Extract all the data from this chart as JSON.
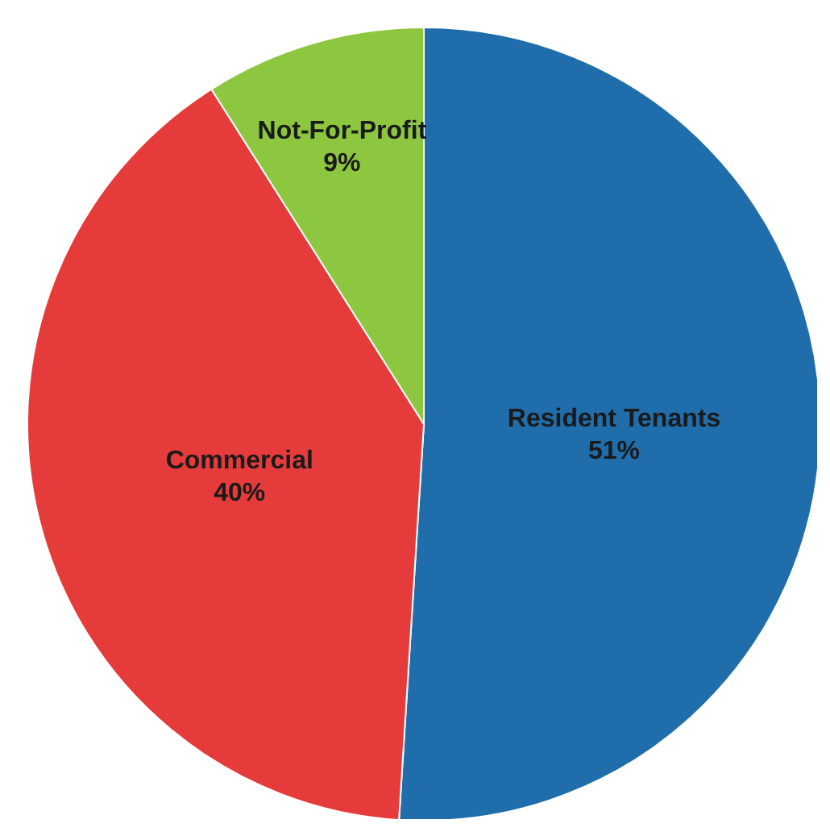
{
  "chart_data": {
    "type": "pie",
    "categories": [
      "Resident Tenants",
      "Commercial",
      "Not-For-Profit"
    ],
    "values": [
      51,
      40,
      9
    ],
    "colors": [
      "#1f6dab",
      "#e63b3b",
      "#8dc63f"
    ],
    "value_labels": [
      "51%",
      "40%",
      "9%"
    ],
    "legend": false
  }
}
